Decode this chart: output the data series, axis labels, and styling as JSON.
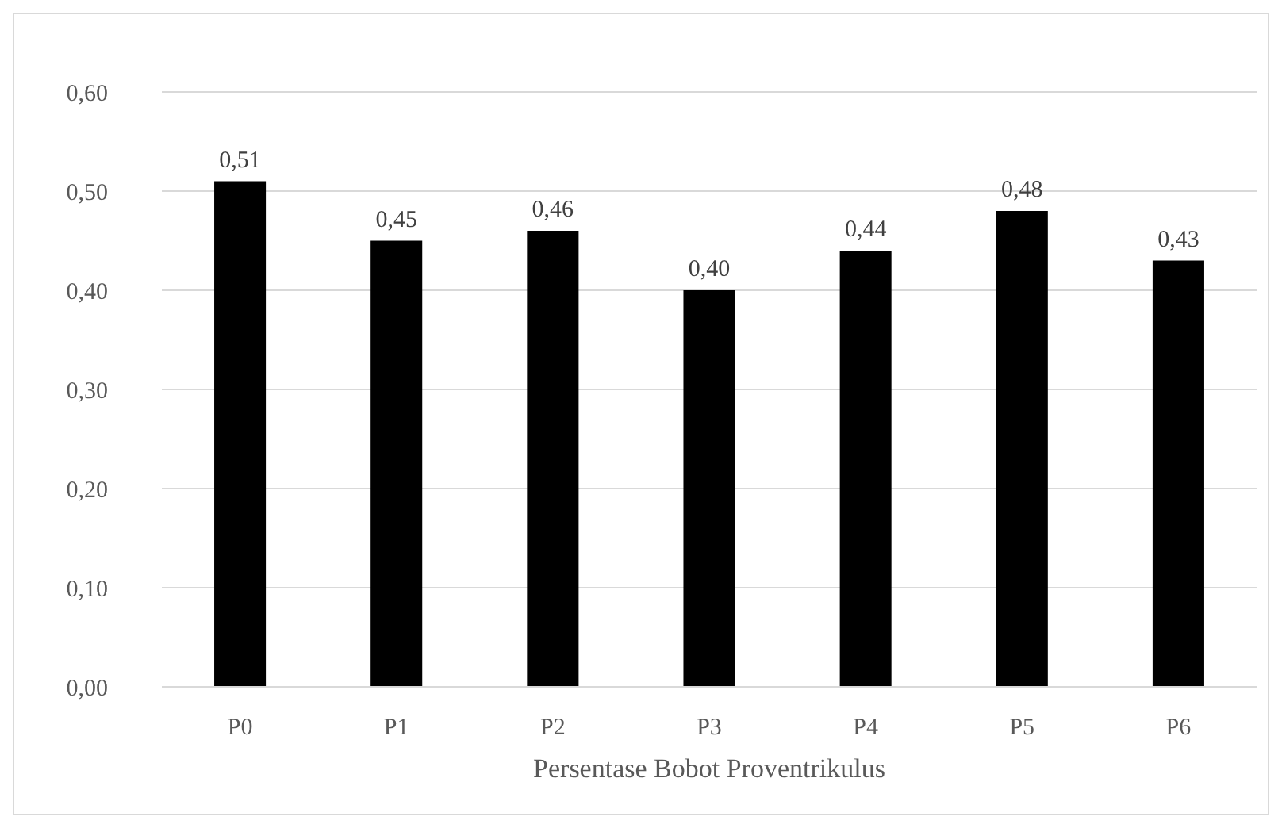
{
  "chart_data": {
    "type": "bar",
    "xlabel": "Persentase Bobot Proventrikulus",
    "categories": [
      "P0",
      "P1",
      "P2",
      "P3",
      "P4",
      "P5",
      "P6"
    ],
    "values": [
      0.51,
      0.45,
      0.46,
      0.4,
      0.44,
      0.48,
      0.43
    ],
    "value_labels": [
      "0,51",
      "0,45",
      "0,46",
      "0,40",
      "0,44",
      "0,48",
      "0,43"
    ],
    "color": "#000000",
    "ylim": [
      0,
      0.6
    ],
    "yticks": [
      {
        "value": 0,
        "label": "0,00"
      },
      {
        "value": 0.1,
        "label": "0,10"
      },
      {
        "value": 0.2,
        "label": "0,20"
      },
      {
        "value": 0.3,
        "label": "0,30"
      },
      {
        "value": 0.4,
        "label": "0,40"
      },
      {
        "value": 0.5,
        "label": "0,50"
      },
      {
        "value": 0.6,
        "label": "0,60"
      }
    ],
    "grid": "y"
  }
}
